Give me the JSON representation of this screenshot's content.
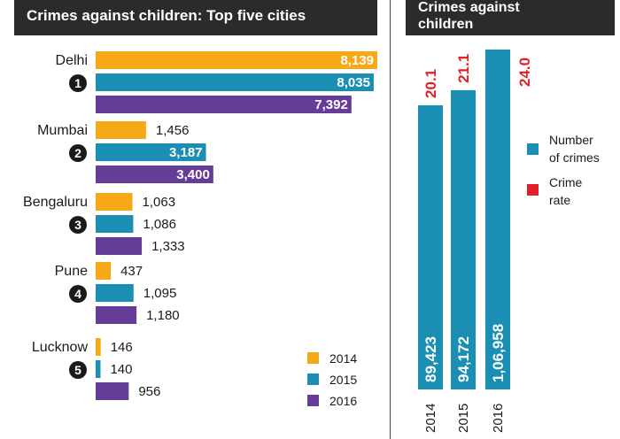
{
  "left_title": "Crimes against children: Top five cities",
  "right_title_line1": "Crimes against",
  "right_title_line2": "children",
  "colors": {
    "2014": "#f7a816",
    "2015": "#1a8fb3",
    "2016": "#663d96",
    "rate": "#e21f26",
    "header_bg": "#2b2b2b"
  },
  "chart_data": [
    {
      "type": "bar",
      "orientation": "horizontal",
      "title": "Crimes against children: Top five cities",
      "categories": [
        "Delhi",
        "Mumbai",
        "Bengaluru",
        "Pune",
        "Lucknow"
      ],
      "ranks": [
        "1",
        "2",
        "3",
        "4",
        "5"
      ],
      "series": [
        {
          "name": "2014",
          "values": [
            8139,
            1456,
            1063,
            437,
            146
          ],
          "labels": [
            "8,139",
            "1,456",
            "1,063",
            "437",
            "146"
          ]
        },
        {
          "name": "2015",
          "values": [
            8035,
            3187,
            1086,
            1095,
            140
          ],
          "labels": [
            "8,035",
            "3,187",
            "1,086",
            "1,095",
            "140"
          ]
        },
        {
          "name": "2016",
          "values": [
            7392,
            3400,
            1333,
            1180,
            956
          ],
          "labels": [
            "7,392",
            "3,400",
            "1,333",
            "1,180",
            "956"
          ]
        }
      ],
      "legend": [
        "2014",
        "2015",
        "2016"
      ],
      "legend_position": "bottom-right"
    },
    {
      "type": "bar",
      "orientation": "vertical",
      "title": "Crimes against children",
      "categories": [
        "2014",
        "2015",
        "2016"
      ],
      "series": [
        {
          "name": "Number of crimes",
          "values": [
            89423,
            94172,
            106958
          ],
          "labels": [
            "89,423",
            "94,172",
            "1,06,958"
          ]
        },
        {
          "name": "Crime rate",
          "values": [
            20.1,
            21.1,
            24.0
          ],
          "labels": [
            "20.1",
            "21.1",
            "24.0"
          ]
        }
      ],
      "legend": [
        "Number of crimes",
        "Crime rate"
      ],
      "legend_position": "right"
    }
  ]
}
